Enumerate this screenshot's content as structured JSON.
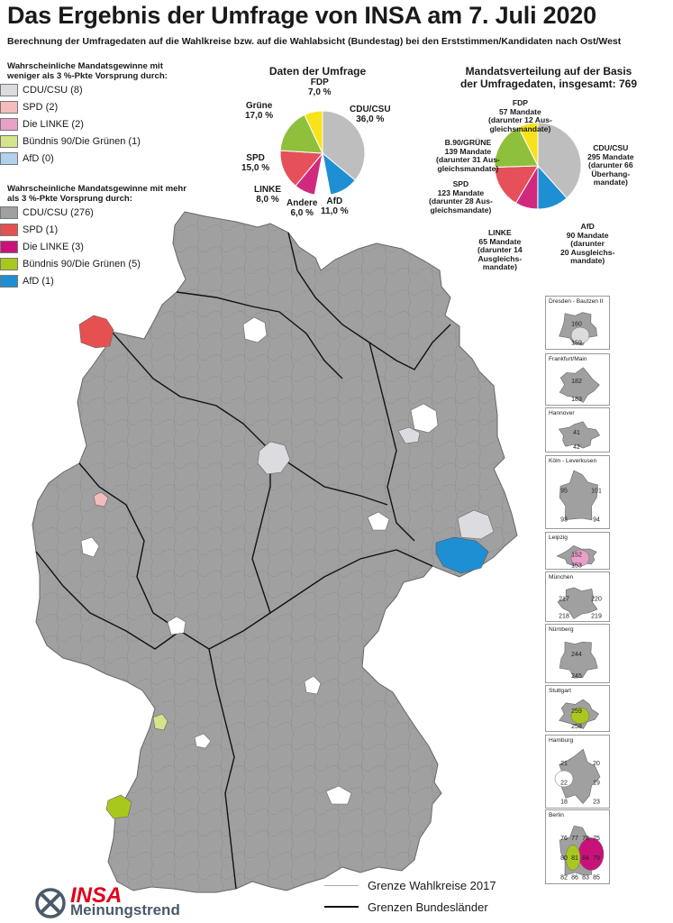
{
  "title": "Das Ergebnis der Umfrage von INSA am 7. Juli 2020",
  "subtitle": "Berechnung der Umfragedaten auf die Wahlkreise bzw. auf die Wahlabsicht (Bundestag) bei den Erststimmen/Kandidaten nach Ost/West",
  "legend": {
    "group1_heading": "Wahrscheinliche Mandatsgewinne mit weniger als 3 %-Pkte Vorsprung durch:",
    "group1": [
      {
        "label": "CDU/CSU (8)",
        "color": "#dcdce0"
      },
      {
        "label": "SPD (2)",
        "color": "#f5bcbc"
      },
      {
        "label": "Die LINKE (2)",
        "color": "#e8a0c8"
      },
      {
        "label": "Bündnis 90/Die Grünen (1)",
        "color": "#d4e48a"
      },
      {
        "label": "AfD (0)",
        "color": "#b0d0ec"
      }
    ],
    "group2_heading": "Wahrscheinliche Mandatsgewinne mit mehr als 3 %-Pkte Vorsprung durch:",
    "group2": [
      {
        "label": "CDU/CSU (276)",
        "color": "#a0a0a0"
      },
      {
        "label": "SPD (1)",
        "color": "#e55050"
      },
      {
        "label": "Die LINKE (3)",
        "color": "#c8127a"
      },
      {
        "label": "Bündnis 90/Die Grünen (5)",
        "color": "#a8c81e"
      },
      {
        "label": "AfD (1)",
        "color": "#1f8fd3"
      }
    ]
  },
  "survey_pie": {
    "title": "Daten der Umfrage",
    "slices": [
      {
        "party": "CDU/CSU",
        "value": 36.0,
        "label": "CDU/CSU",
        "value_label": "36,0 %",
        "color": "#bebebe"
      },
      {
        "party": "AfD",
        "value": 11.0,
        "label": "AfD",
        "value_label": "11,0 %",
        "color": "#1f8fd3"
      },
      {
        "party": "Andere",
        "value": 6.0,
        "label": "Andere",
        "value_label": "6,0 %",
        "color": "#ffffff"
      },
      {
        "party": "LINKE",
        "value": 8.0,
        "label": "LINKE",
        "value_label": "8,0 %",
        "color": "#d02a7e"
      },
      {
        "party": "SPD",
        "value": 15.0,
        "label": "SPD",
        "value_label": "15,0 %",
        "color": "#e5505a"
      },
      {
        "party": "Grüne",
        "value": 17.0,
        "label": "Grüne",
        "value_label": "17,0 %",
        "color": "#8fc03c"
      },
      {
        "party": "FDP",
        "value": 7.0,
        "label": "FDP",
        "value_label": "7,0 %",
        "color": "#f8e21a"
      }
    ]
  },
  "seats_pie": {
    "title_line1": "Mandatsverteilung auf der Basis",
    "title_line2": "der Umfragedaten, insgesamt: 769",
    "slices": [
      {
        "party": "CDU/CSU",
        "value": 295,
        "lines": [
          "CDU/CSU",
          "295 Mandate",
          "(darunter 66",
          "Überhang-",
          "mandate)"
        ],
        "color": "#bebebe"
      },
      {
        "party": "AfD",
        "value": 90,
        "lines": [
          "AfD",
          "90 Mandate",
          "(darunter",
          "20 Ausgleichs-",
          "mandate)"
        ],
        "color": "#1f8fd3"
      },
      {
        "party": "LINKE",
        "value": 65,
        "lines": [
          "LINKE",
          "65 Mandate",
          "(darunter 14",
          "Ausgleichs-",
          "mandate)"
        ],
        "color": "#d02a7e"
      },
      {
        "party": "SPD",
        "value": 123,
        "lines": [
          "SPD",
          "123 Mandate",
          "(darunter 28 Aus-",
          "gleichsmandate)"
        ],
        "color": "#e5505a"
      },
      {
        "party": "B.90/GRÜNE",
        "value": 139,
        "lines": [
          "B.90/GRÜNE",
          "139 Mandate",
          "(darunter 31 Aus-",
          "gleichsmandate)"
        ],
        "color": "#8fc03c"
      },
      {
        "party": "FDP",
        "value": 57,
        "lines": [
          "FDP",
          "57 Mandate",
          "(darunter 12 Aus-",
          "gleichsmandate)"
        ],
        "color": "#f8e21a"
      }
    ]
  },
  "insets": [
    {
      "title": "Dresden - Bautzen II",
      "numbers": [
        "160",
        "159"
      ]
    },
    {
      "title": "Frankfurt/Main",
      "numbers": [
        "182",
        "183"
      ]
    },
    {
      "title": "Hannover",
      "numbers": [
        "41",
        "42"
      ]
    },
    {
      "title": "Köln - Leverkusen",
      "numbers": [
        "95",
        "101",
        "93",
        "94"
      ]
    },
    {
      "title": "Leipzig",
      "numbers": [
        "152",
        "153"
      ]
    },
    {
      "title": "München",
      "numbers": [
        "217",
        "220",
        "218",
        "219"
      ]
    },
    {
      "title": "Nürnberg",
      "numbers": [
        "244",
        "245"
      ]
    },
    {
      "title": "Stuttgart",
      "numbers": [
        "259",
        "258"
      ]
    },
    {
      "title": "Hamburg",
      "numbers": [
        "21",
        "20",
        "22",
        "19",
        "18",
        "23"
      ]
    },
    {
      "title": "Berlin",
      "numbers": [
        "76",
        "77",
        "78",
        "75",
        "80",
        "81",
        "84",
        "79",
        "82",
        "86",
        "83",
        "85"
      ]
    }
  ],
  "map_legend": {
    "constituency_border": "Grenze Wahlkreise 2017",
    "state_border": "Grenzen Bundesländer"
  },
  "logo": {
    "brand": "INSA",
    "tagline": "Meinungstrend",
    "color": "#e2001a",
    "text_color": "#4a5a6a"
  },
  "colors": {
    "map_gray": "#a0a0a0",
    "light_gray": "#dcdce0"
  }
}
